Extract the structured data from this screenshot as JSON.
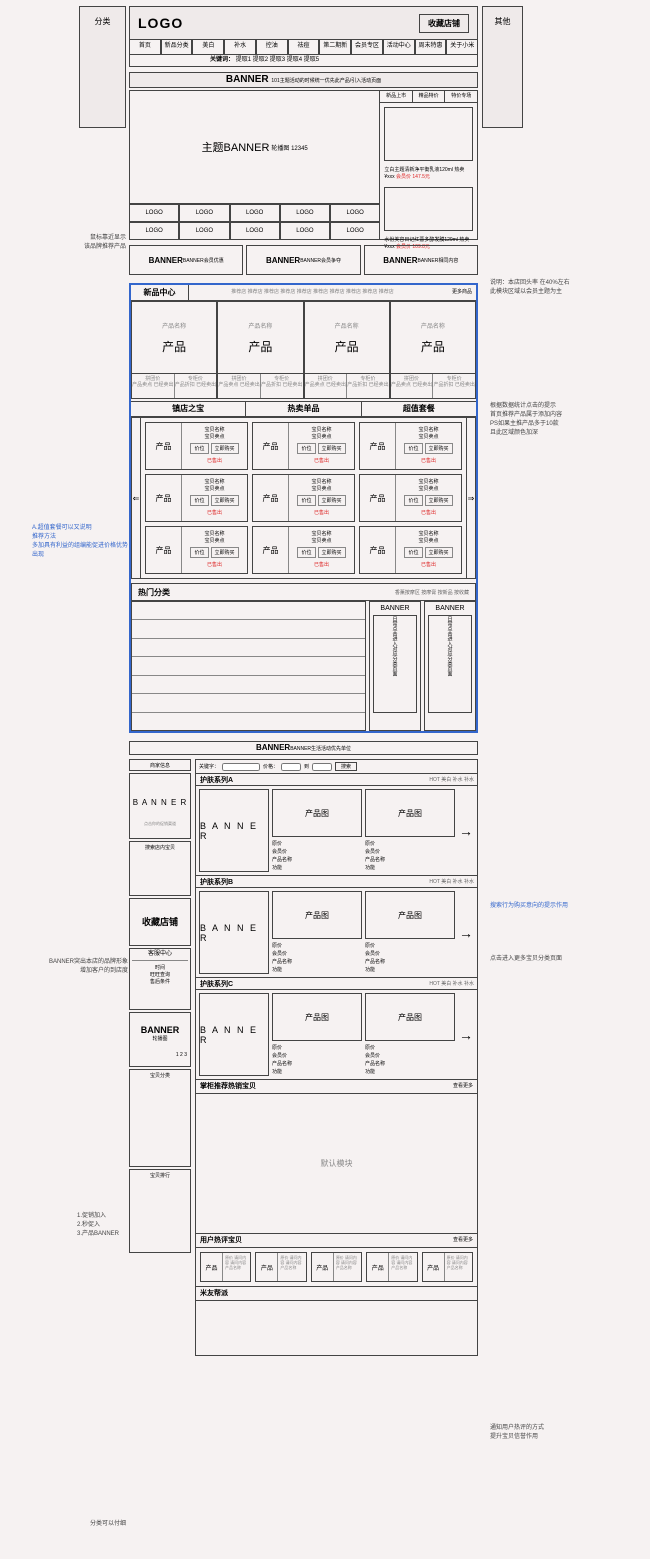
{
  "side": {
    "left": "分类",
    "right": "其他"
  },
  "header": {
    "logo": "LOGO",
    "fav": "收藏店铺"
  },
  "nav": [
    "首页",
    "新品分类",
    "美白",
    "补水",
    "控油",
    "祛痘",
    "第二期新",
    "会员专区",
    "活动中心",
    "周末特惠",
    "关于小米"
  ],
  "kw": {
    "label": "关键词：",
    "items": "提取1 提取2 提取3 提取4 提取5"
  },
  "banner1": {
    "t": "BANNER",
    "sub": "101主题活动的时候统一优先此产品/引入活动页面"
  },
  "hero": {
    "main": "主题BANNER",
    "main_sub": "轮播图 12345",
    "logos": [
      "LOGO",
      "LOGO",
      "LOGO",
      "LOGO",
      "LOGO",
      "LOGO",
      "LOGO",
      "LOGO",
      "LOGO",
      "LOGO"
    ],
    "rtabs": [
      "新品上市",
      "精品特价",
      "特价专场"
    ],
    "r1_txt": "立白主题清新净平衡乳液120ml 热卖",
    "r1_vip": "¥xxx",
    "r1_price": "会员价 147.5元",
    "r2_txt": "水份美容日记红薏多醇发膜129ml 热卖",
    "r2_vip": "¥xxx",
    "r2_price": "会员价 109.8元"
  },
  "tri": [
    "BANNER会员优惠",
    "BANNER会员争夺",
    "BANNER相同内容"
  ],
  "np": {
    "title": "新品中心",
    "tags": "推荐店 推荐店 推荐店 推荐店 推荐店 推荐店 推荐店 推荐店 推荐店 推荐店",
    "more": "更多商品",
    "card_t": "产品名称",
    "card_p": "产品",
    "d1": "拼团价",
    "d2": "专柜价",
    "dr1": "产品卖点 已经卖出",
    "dr2": "产品折扣 已经卖出"
  },
  "tabs3": [
    "镇店之宝",
    "热卖单品",
    "超值套餐"
  ],
  "pg": {
    "img": "产品",
    "name": "宝贝名称",
    "point": "宝贝卖点",
    "b1": "价位",
    "b2": "立即购买",
    "sold": "已售出"
  },
  "hot": {
    "title": "热门分类",
    "filters": "香薰按摩区 按摩膏 按新品 按收藏",
    "b": "BANNER",
    "b_txt": "日常点击进入对应分类页面"
  },
  "banner2": "BANNER生活活动优先单位",
  "left": {
    "b1": "商家信息",
    "b2": "B A N N E R",
    "b2_sub": "点击你的促销渠道",
    "b3": "搜索店内宝贝",
    "b4": "收藏店铺",
    "b5_t": "客服中心",
    "b5_1": "时间",
    "b5_2": "旺旺查询",
    "b5_3": "售后条件",
    "b6": "BANNER",
    "b6_sub": "轮播图",
    "b6_pg": "1 2 3",
    "b7": "宝贝分类",
    "b8": "宝贝排行"
  },
  "search": {
    "l1": "关键字：",
    "l2": "价格：",
    "to": "到",
    "btn": "搜索"
  },
  "series": {
    "a": "护肤系列A",
    "b": "护肤系列B",
    "c": "护肤系列C",
    "r": "HOT 美白 补水 补水",
    "banner": "B A N N E R",
    "pimg": "产品图",
    "pinfo1": "原价",
    "pinfo2": "会员价",
    "pinfo3": "产品名称",
    "pinfo4": "功能"
  },
  "rec": {
    "t": "掌柜推荐热销宝贝",
    "r": "查看更多",
    "ph": "默认模块"
  },
  "ub": {
    "t": "用户热评宝贝",
    "r": "查看更多",
    "img": "产品",
    "inf": "原价\n请问内容\n请问内容\n产品名称"
  },
  "mf": {
    "t": "米友帮派"
  },
  "anno": {
    "a1": "鼠标靠近显示\n该品牌推荐产品",
    "a2": "说明：本店回头率 在40%左右\n此模块区域以会员主题为主",
    "a3": "A.超值套餐可以又说明\n推荐方法\n多加具有利益的组编能促进价格优势出现",
    "a4": "根据数据统计点击的提示\n首页推荐产品属于添加内容\n PS如果主推产品多于10款\n且此区域颜色加深",
    "a5": "BANNER突出本店的品牌形象\n增加客户的到店度",
    "a6": "搜索行为购买意向的提示作用",
    "a7": "点击进入更多宝贝分类页面",
    "a8": "1.促销加入\n2.秒促入\n3.产品BANNER",
    "a9": "通知用户热评的方式\n提升宝贝信誉作用",
    "a10": "分类可以付细"
  }
}
